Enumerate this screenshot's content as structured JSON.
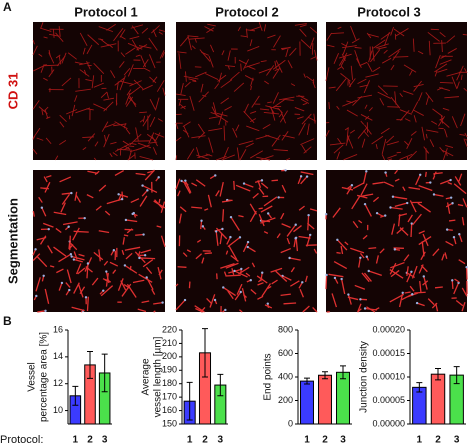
{
  "panel_labels": [
    "A",
    "B"
  ],
  "column_titles": [
    "Protocol 1",
    "Protocol 2",
    "Protocol 3"
  ],
  "row_labels": [
    "CD 31",
    "Segmentation"
  ],
  "protocol_label": "Protocol:",
  "chart_data": [
    {
      "type": "bar",
      "ylabel": [
        "Vessel",
        "percentage area [%]"
      ],
      "categories": [
        "1",
        "2",
        "3"
      ],
      "values": [
        11.1,
        13.4,
        12.8
      ],
      "errors": [
        0.7,
        1.0,
        1.4
      ],
      "colors": [
        "#3b3bff",
        "#ff5a5a",
        "#4be04b"
      ],
      "ylim": [
        9,
        16
      ],
      "yticks": [
        10,
        12,
        14,
        16
      ]
    },
    {
      "type": "bar",
      "ylabel": [
        "Average",
        "vessel length [µm]"
      ],
      "categories": [
        "1",
        "2",
        "3"
      ],
      "values": [
        167,
        203,
        179
      ],
      "errors": [
        14,
        18,
        8
      ],
      "colors": [
        "#3b3bff",
        "#ff5a5a",
        "#4be04b"
      ],
      "ylim": [
        150,
        220
      ],
      "yticks": [
        150,
        160,
        170,
        180,
        190,
        200,
        210,
        220
      ]
    },
    {
      "type": "bar",
      "ylabel": [
        "End points"
      ],
      "categories": [
        "1",
        "2",
        "3"
      ],
      "values": [
        365,
        415,
        440
      ],
      "errors": [
        25,
        30,
        55
      ],
      "colors": [
        "#3b3bff",
        "#ff5a5a",
        "#4be04b"
      ],
      "ylim": [
        0,
        800
      ],
      "yticks": [
        0,
        200,
        400,
        600,
        800
      ]
    },
    {
      "type": "bar",
      "ylabel": [
        "Junction density"
      ],
      "categories": [
        "1",
        "2",
        "3"
      ],
      "values": [
        7.8e-05,
        0.000106,
        0.000104
      ],
      "errors": [
        1e-05,
        1.2e-05,
        1.8e-05
      ],
      "colors": [
        "#3b3bff",
        "#ff5a5a",
        "#4be04b"
      ],
      "ylim": [
        0,
        0.0002
      ],
      "yticks": [
        {
          "value": 0,
          "label": "0.00000"
        },
        {
          "value": 5e-05,
          "label": "0.00005"
        },
        {
          "value": 0.0001,
          "label": "0.00010"
        },
        {
          "value": 0.00015,
          "label": "0.00015"
        },
        {
          "value": 0.0002,
          "label": "0.00020"
        }
      ]
    }
  ]
}
